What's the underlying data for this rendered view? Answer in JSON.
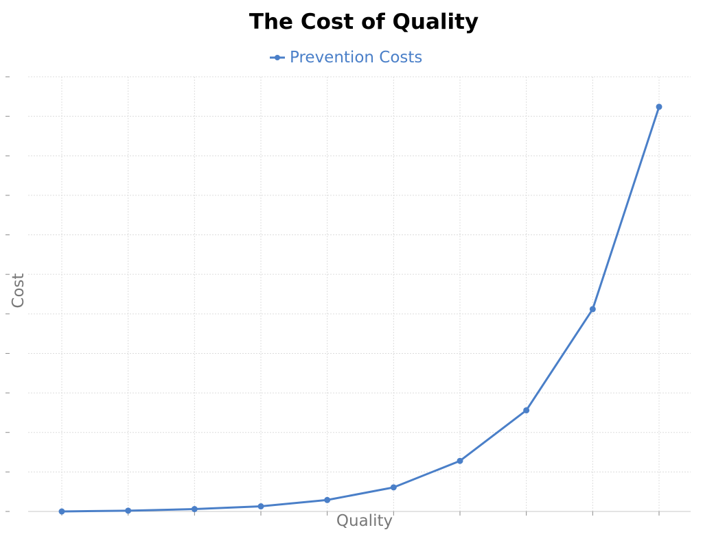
{
  "chart_data": {
    "type": "line",
    "title": "The Cost of Quality",
    "xlabel": "Quality",
    "ylabel": "Cost",
    "x": [
      1,
      2,
      3,
      4,
      5,
      6,
      7,
      8,
      9,
      10
    ],
    "series": [
      {
        "name": "Prevention Costs",
        "values": [
          0,
          0.2,
          0.6,
          1.3,
          2.9,
          6.1,
          12.8,
          25.6,
          51.2,
          102.4
        ],
        "color": "#4a7fc8"
      }
    ],
    "ylim": [
      0,
      110
    ],
    "y_tick_count": 12,
    "grid": true,
    "legend_position": "top-center",
    "tick_labels_shown": false
  }
}
